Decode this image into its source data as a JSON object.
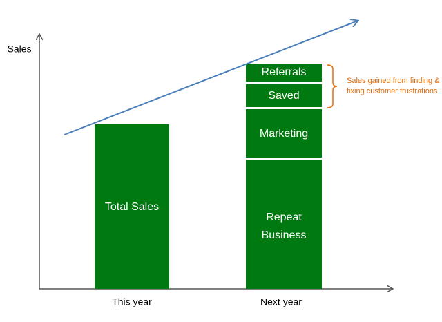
{
  "axis_label": "Sales",
  "bars": [
    {
      "label": "This year",
      "segments": [
        {
          "lines": [
            "Total Sales"
          ]
        }
      ]
    },
    {
      "label": "Next year",
      "segments": [
        {
          "lines": [
            "Referrals"
          ]
        },
        {
          "lines": [
            "Saved"
          ]
        },
        {
          "lines": [
            "Marketing"
          ]
        },
        {
          "lines": [
            "Repeat",
            "Business"
          ]
        }
      ]
    }
  ],
  "annotation": [
    "Sales gained from finding &",
    "fixing customer frustrations"
  ]
}
